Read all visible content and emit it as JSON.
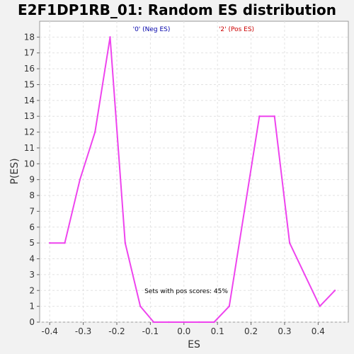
{
  "chart_data": {
    "type": "line",
    "title": "E2F1DP1RB_01: Random ES distribution",
    "xlabel": "ES",
    "ylabel": "P(ES)",
    "xlim": [
      -0.43,
      0.49
    ],
    "ylim": [
      0,
      19
    ],
    "x_ticks": [
      -0.4,
      -0.3,
      -0.2,
      -0.1,
      0.0,
      0.1,
      0.2,
      0.3,
      0.4
    ],
    "x_tick_labels": [
      "-0.4",
      "-0.3",
      "-0.2",
      "-0.1",
      "0.0",
      "0.1",
      "0.2",
      "0.3",
      "0.4"
    ],
    "y_ticks": [
      0,
      1,
      2,
      3,
      4,
      5,
      6,
      7,
      8,
      9,
      10,
      11,
      12,
      13,
      14,
      15,
      16,
      17,
      18
    ],
    "y_tick_labels": [
      "0",
      "1",
      "2",
      "3",
      "4",
      "5",
      "6",
      "7",
      "8",
      "9",
      "10",
      "11",
      "12",
      "13",
      "14",
      "15",
      "16",
      "17",
      "18"
    ],
    "grid": true,
    "legend": [
      {
        "label": "'0' (Neg ES)",
        "color": "#0000aa"
      },
      {
        "label": "'2' (Pos ES)",
        "color": "#cc0000"
      }
    ],
    "annotation": "Sets with pos scores: 45%",
    "series": [
      {
        "color": "#ee44ee",
        "x": [
          -0.4,
          -0.355,
          -0.31,
          -0.265,
          -0.22,
          -0.175,
          -0.13,
          -0.09,
          -0.045,
          0.0,
          0.045,
          0.09,
          0.135,
          0.18,
          0.225,
          0.27,
          0.315,
          0.36,
          0.405,
          0.45
        ],
        "y": [
          5,
          5,
          9,
          12,
          18,
          5,
          1,
          0,
          0,
          0,
          0,
          0,
          1,
          7,
          13,
          13,
          5,
          3,
          1,
          2
        ]
      }
    ]
  }
}
